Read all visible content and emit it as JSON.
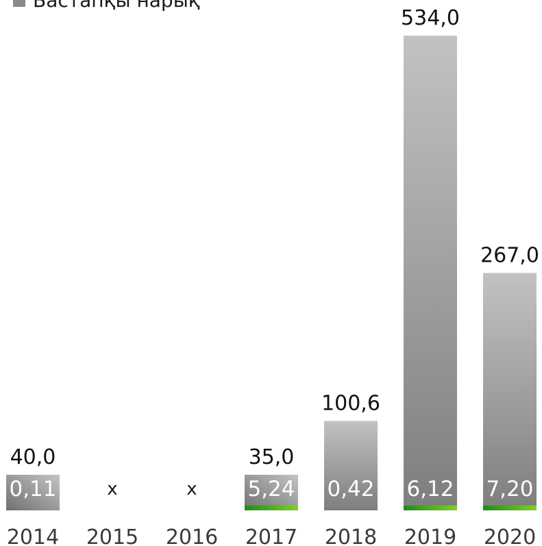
{
  "chart_data": {
    "type": "bar",
    "legend": [
      {
        "name": "Бастапқы нарық",
        "color": "#8a8a8a"
      }
    ],
    "categories": [
      "2014",
      "2015",
      "2016",
      "2017",
      "2018",
      "2019",
      "2020"
    ],
    "series": [
      {
        "name": "Бастапқы нарық",
        "values": [
          40.0,
          null,
          null,
          35.0,
          100.6,
          534.0,
          267.0
        ],
        "value_labels": [
          "40,0",
          "x",
          "x",
          "35,0",
          "100,6",
          "534,0",
          "267,0"
        ]
      },
      {
        "name": "",
        "values": [
          0.11,
          null,
          null,
          5.24,
          0.42,
          6.12,
          7.2
        ],
        "value_labels": [
          "0,11",
          "",
          "",
          "5,24",
          "0,42",
          "6,12",
          "7,20"
        ]
      }
    ],
    "colors": {
      "bar_light": "#c2c2c2",
      "bar_dark": "#7e7e7e",
      "green_accent": "#3cb219"
    },
    "grid": false,
    "legend_position": "top-left"
  }
}
